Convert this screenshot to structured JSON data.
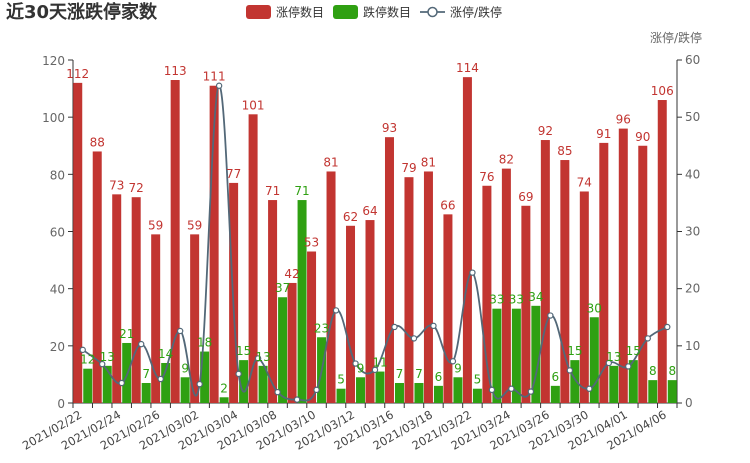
{
  "chart_data": {
    "type": "bar",
    "title": "近30天涨跌停家数",
    "categories": [
      "2021/02/22",
      "2021/02/23",
      "2021/02/24",
      "2021/02/25",
      "2021/02/26",
      "2021/03/01",
      "2021/03/02",
      "2021/03/03",
      "2021/03/04",
      "2021/03/05",
      "2021/03/08",
      "2021/03/09",
      "2021/03/10",
      "2021/03/11",
      "2021/03/12",
      "2021/03/15",
      "2021/03/16",
      "2021/03/17",
      "2021/03/18",
      "2021/03/19",
      "2021/03/22",
      "2021/03/23",
      "2021/03/24",
      "2021/03/25",
      "2021/03/26",
      "2021/03/29",
      "2021/03/30",
      "2021/03/31",
      "2021/04/01",
      "2021/04/02",
      "2021/04/06"
    ],
    "tick_labels": [
      "2021/02/22",
      "2021/02/24",
      "2021/02/26",
      "2021/03/02",
      "2021/03/04",
      "2021/03/08",
      "2021/03/10",
      "2021/03/12",
      "2021/03/16",
      "2021/03/18",
      "2021/03/22",
      "2021/03/24",
      "2021/03/26",
      "2021/03/30",
      "2021/04/01",
      "2021/04/06"
    ],
    "series": [
      {
        "name": "涨停数目",
        "type": "bar",
        "axis": "left",
        "color": "#c23531",
        "values": [
          112,
          88,
          73,
          72,
          59,
          113,
          59,
          111,
          77,
          101,
          71,
          42,
          53,
          81,
          62,
          64,
          93,
          79,
          81,
          66,
          114,
          76,
          82,
          69,
          92,
          85,
          74,
          91,
          96,
          90,
          106
        ]
      },
      {
        "name": "跌停数目",
        "type": "bar",
        "axis": "left",
        "color": "#2fa012",
        "values": [
          12,
          13,
          21,
          7,
          14,
          9,
          18,
          2,
          15,
          13,
          37,
          71,
          23,
          5,
          9,
          11,
          7,
          7,
          6,
          9,
          5,
          33,
          33,
          34,
          6,
          15,
          30,
          13,
          15,
          8,
          8
        ]
      },
      {
        "name": "涨停/跌停",
        "type": "line",
        "axis": "right",
        "color": "#536878",
        "values": [
          9.3,
          6.8,
          3.5,
          10.3,
          4.2,
          12.6,
          3.3,
          55.5,
          5.1,
          7.8,
          1.9,
          0.6,
          2.3,
          16.2,
          6.9,
          5.8,
          13.3,
          11.3,
          13.5,
          7.3,
          22.8,
          2.3,
          2.5,
          2.0,
          15.3,
          5.7,
          2.5,
          7.0,
          6.4,
          11.3,
          13.3
        ]
      }
    ],
    "ylim_left": [
      0,
      120
    ],
    "yticks_left": [
      0,
      20,
      40,
      60,
      80,
      100,
      120
    ],
    "ylim_right": [
      0,
      60
    ],
    "yticks_right": [
      0,
      10,
      20,
      30,
      40,
      50,
      60
    ],
    "ylabel_right": "涨停/跌停",
    "legend_position": "top-center",
    "grid": false
  }
}
